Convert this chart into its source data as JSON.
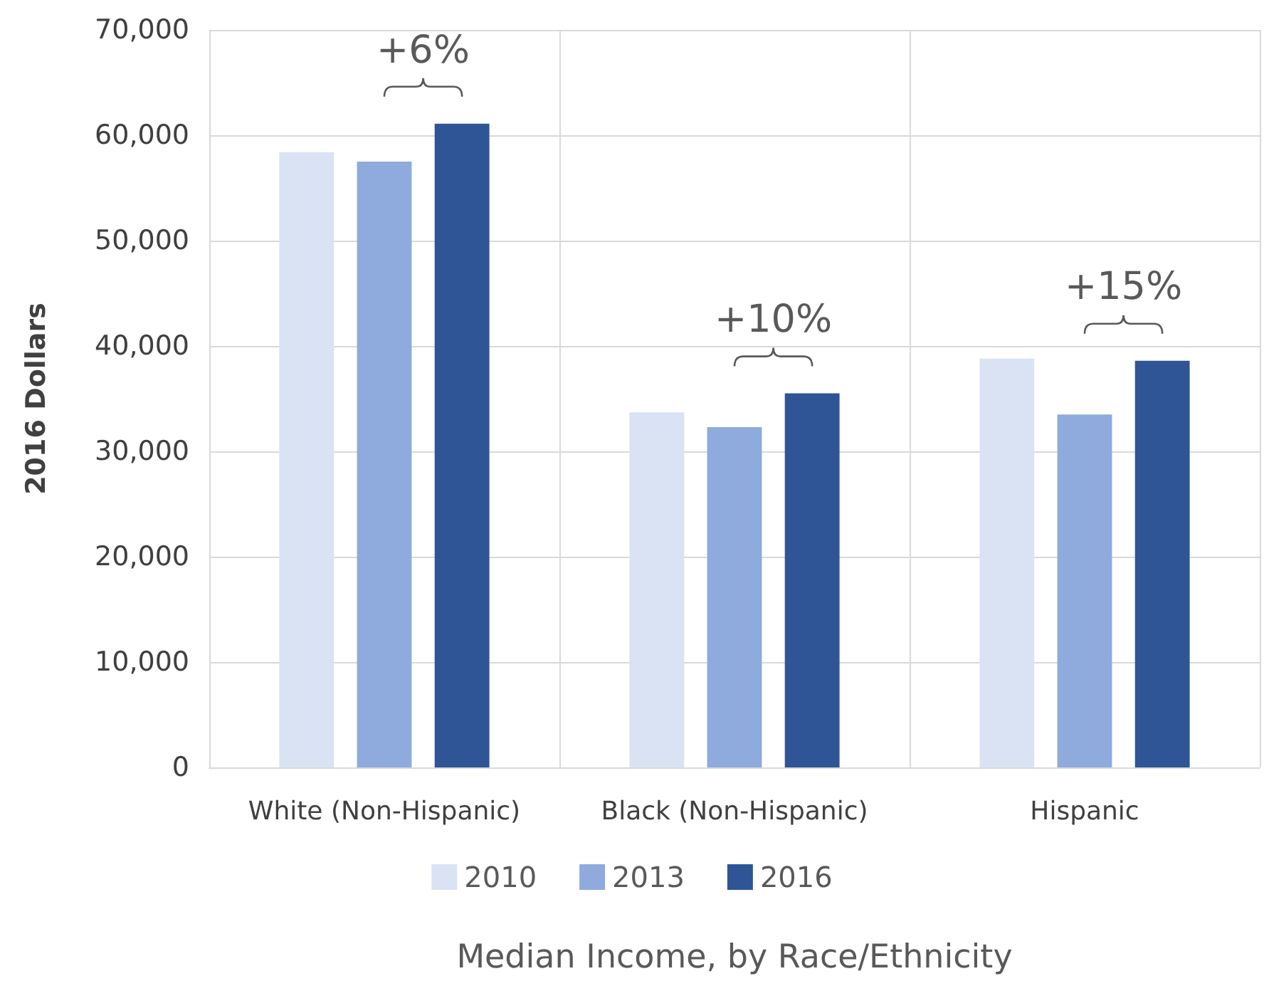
{
  "chart_data": {
    "type": "bar",
    "ylabel": "2016 Dollars",
    "xlabel": "Median Income, by Race/Ethnicity",
    "categories": [
      "White (Non-Hispanic)",
      "Black (Non-Hispanic)",
      "Hispanic"
    ],
    "series": [
      {
        "name": "2010",
        "color": "#dae3f3",
        "values": [
          58400,
          33700,
          38800
        ]
      },
      {
        "name": "2013",
        "color": "#8faadc",
        "values": [
          57500,
          32300,
          33500
        ]
      },
      {
        "name": "2016",
        "color": "#2f5597",
        "values": [
          61100,
          35500,
          38600
        ]
      }
    ],
    "ylim": [
      0,
      70000
    ],
    "yticks": [
      0,
      {
        "value": 10000,
        "label": "10,000"
      },
      {
        "value": 20000,
        "label": "20,000"
      },
      {
        "value": 30000,
        "label": "30,000"
      },
      {
        "value": 40000,
        "label": "40,000"
      },
      {
        "value": 50000,
        "label": "50,000"
      },
      {
        "value": 60000,
        "label": "60,000"
      },
      {
        "value": 70000,
        "label": "70,000"
      }
    ],
    "grid": true,
    "legend": "bottom",
    "annotations": [
      "+6%",
      "+10%",
      "+15%"
    ]
  }
}
